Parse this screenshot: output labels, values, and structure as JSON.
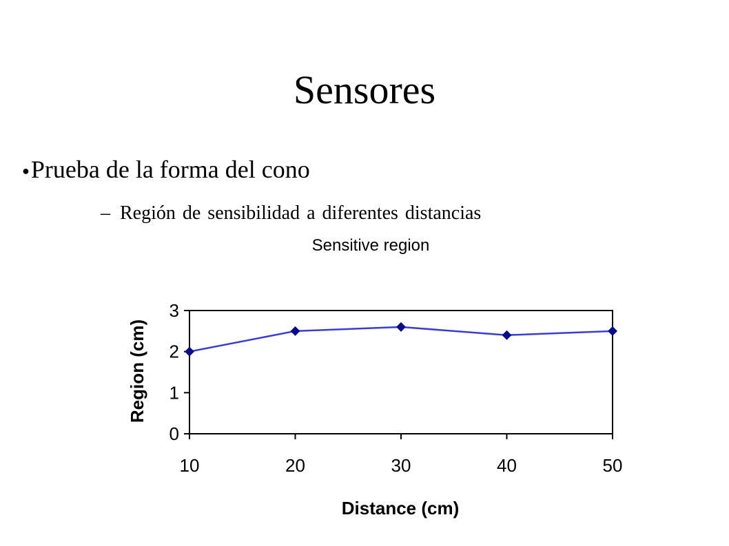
{
  "slide": {
    "title": "Sensores",
    "bullets": [
      {
        "marker": "●",
        "text": "Prueba de la forma del cono"
      },
      {
        "marker": "–",
        "text": "Región de sensibilidad a diferentes distancias"
      }
    ]
  },
  "chart_data": {
    "type": "line",
    "title": "Sensitive region",
    "xlabel": "Distance (cm)",
    "ylabel": "Region (cm)",
    "x": [
      10,
      20,
      30,
      40,
      50
    ],
    "series": [
      {
        "values": [
          2.0,
          2.5,
          2.6,
          2.4,
          2.5
        ]
      }
    ],
    "xlim": [
      10,
      50
    ],
    "ylim": [
      0,
      3
    ],
    "xticks": [
      10,
      20,
      30,
      40,
      50
    ],
    "yticks": [
      0,
      1,
      2,
      3
    ],
    "grid": false,
    "legend": "none",
    "colors": {
      "line": "#3b3bd6",
      "marker": "#0a0a8c",
      "axis": "#000000"
    }
  }
}
